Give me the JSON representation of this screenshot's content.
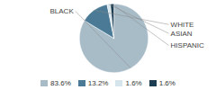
{
  "chart_data": {
    "type": "pie",
    "categories": [
      "BLACK",
      "WHITE",
      "ASIAN",
      "HISPANIC"
    ],
    "values": [
      83.6,
      13.2,
      1.6,
      1.6
    ],
    "value_labels": [
      "83.6%",
      "13.2%",
      "1.6%",
      "1.6%"
    ],
    "colors": [
      "#a8bcc8",
      "#4a7a96",
      "#d6e4ec",
      "#1c3d52"
    ],
    "legend": "bottom"
  }
}
